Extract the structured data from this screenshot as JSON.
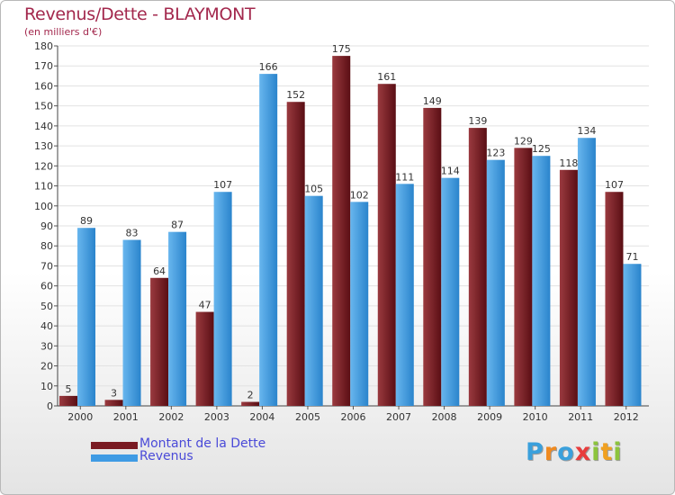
{
  "chart_data": {
    "type": "bar",
    "title": "Revenus/Dette - BLAYMONT",
    "subtitle": "(en milliers d'€)",
    "xlabel": "",
    "ylabel": "",
    "ylim": [
      0,
      180
    ],
    "yticks": [
      0,
      10,
      20,
      30,
      40,
      50,
      60,
      70,
      80,
      90,
      100,
      110,
      120,
      130,
      140,
      150,
      160,
      170,
      180
    ],
    "grid": true,
    "categories": [
      "2000",
      "2001",
      "2002",
      "2003",
      "2004",
      "2005",
      "2006",
      "2007",
      "2008",
      "2009",
      "2010",
      "2011",
      "2012"
    ],
    "series": [
      {
        "name": "Montant de la Dette",
        "color": "#7a1a22",
        "values": [
          5,
          3,
          64,
          47,
          2,
          152,
          175,
          161,
          149,
          139,
          129,
          118,
          107
        ]
      },
      {
        "name": "Revenus",
        "color": "#3f9be4",
        "values": [
          89,
          83,
          87,
          107,
          166,
          105,
          102,
          111,
          114,
          123,
          125,
          134,
          71
        ]
      }
    ],
    "legend": "bottom-left"
  },
  "logo": {
    "letters": [
      {
        "char": "P",
        "color": "#3aa0dc"
      },
      {
        "char": "r",
        "color": "#f08a20"
      },
      {
        "char": "o",
        "color": "#3aa0dc"
      },
      {
        "char": "x",
        "color": "#e83c3c"
      },
      {
        "char": "i",
        "color": "#8cc43c"
      },
      {
        "char": "t",
        "color": "#f0a020"
      },
      {
        "char": "i",
        "color": "#8cc43c"
      }
    ]
  }
}
